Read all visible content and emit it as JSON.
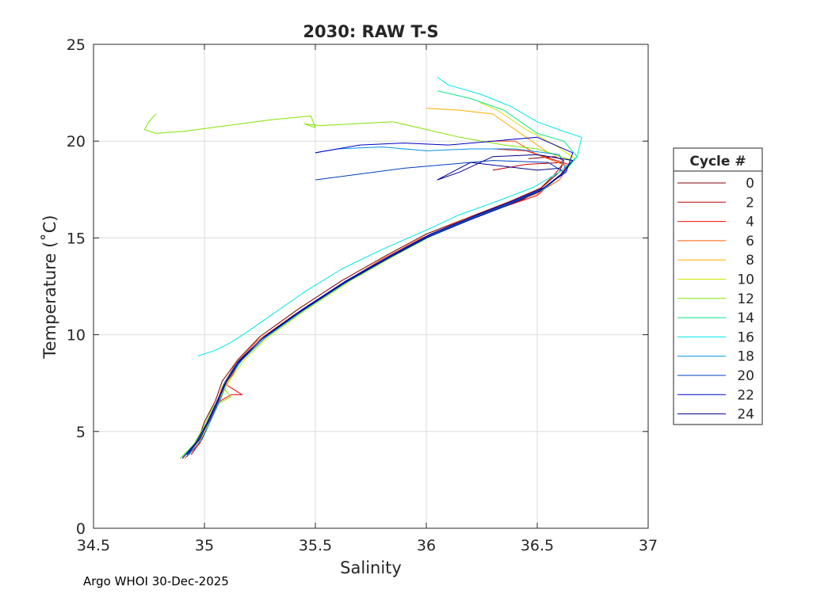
{
  "chart_data": {
    "type": "line",
    "title": "2030: RAW T-S",
    "xlabel": "Salinity",
    "ylabel": "Temperature (˚C)",
    "xlim": [
      34.5,
      37
    ],
    "ylim": [
      0,
      25
    ],
    "xticks": [
      "34.5",
      "35",
      "35.5",
      "36",
      "36.5",
      "37"
    ],
    "xtick_values": [
      34.5,
      35,
      35.5,
      36,
      36.5,
      37
    ],
    "yticks": [
      "0",
      "5",
      "10",
      "15",
      "20",
      "25"
    ],
    "ytick_values": [
      0,
      5,
      10,
      15,
      20,
      25
    ],
    "grid": true,
    "legend_title": "Cycle #",
    "legend_position": "right",
    "series": [
      {
        "name": "0",
        "color": "#7f0000",
        "points": [
          [
            34.93,
            3.9
          ],
          [
            34.97,
            4.5
          ],
          [
            35.0,
            5.5
          ],
          [
            35.05,
            6.6
          ],
          [
            35.08,
            7.6
          ],
          [
            35.15,
            8.7
          ],
          [
            35.25,
            9.9
          ],
          [
            35.42,
            11.3
          ],
          [
            35.62,
            12.8
          ],
          [
            35.82,
            14.1
          ],
          [
            36.0,
            15.2
          ],
          [
            36.2,
            16.1
          ],
          [
            36.38,
            16.9
          ],
          [
            36.52,
            17.6
          ],
          [
            36.6,
            18.4
          ],
          [
            36.62,
            19.0
          ],
          [
            36.58,
            19.2
          ],
          [
            36.46,
            19.1
          ]
        ]
      },
      {
        "name": "2",
        "color": "#c00000",
        "points": [
          [
            34.94,
            3.8
          ],
          [
            34.99,
            4.6
          ],
          [
            35.03,
            5.7
          ],
          [
            35.07,
            6.7
          ],
          [
            35.1,
            7.7
          ],
          [
            35.17,
            8.8
          ],
          [
            35.28,
            10.0
          ],
          [
            35.46,
            11.4
          ],
          [
            35.66,
            12.9
          ],
          [
            35.86,
            14.2
          ],
          [
            36.04,
            15.3
          ],
          [
            36.22,
            16.1
          ],
          [
            36.36,
            16.7
          ],
          [
            36.44,
            17.0
          ],
          [
            36.5,
            17.4
          ],
          [
            36.58,
            18.3
          ],
          [
            36.62,
            18.9
          ],
          [
            36.45,
            18.8
          ],
          [
            36.3,
            18.5
          ]
        ]
      },
      {
        "name": "4",
        "color": "#ff0000",
        "points": [
          [
            34.92,
            3.7
          ],
          [
            34.98,
            4.4
          ],
          [
            35.02,
            5.6
          ],
          [
            35.06,
            6.5
          ],
          [
            35.12,
            6.9
          ],
          [
            35.17,
            6.9
          ],
          [
            35.1,
            7.4
          ],
          [
            35.16,
            8.6
          ],
          [
            35.26,
            9.8
          ],
          [
            35.44,
            11.2
          ],
          [
            35.64,
            12.7
          ],
          [
            35.84,
            14.0
          ],
          [
            36.02,
            15.1
          ],
          [
            36.12,
            15.6
          ],
          [
            36.24,
            16.2
          ],
          [
            36.4,
            16.8
          ],
          [
            36.5,
            17.2
          ],
          [
            36.6,
            18.2
          ],
          [
            36.64,
            18.8
          ],
          [
            36.45,
            19.5
          ],
          [
            36.3,
            19.6
          ]
        ]
      },
      {
        "name": "6",
        "color": "#ff5a00",
        "points": [
          [
            34.91,
            3.6
          ],
          [
            34.97,
            4.3
          ],
          [
            35.01,
            5.4
          ],
          [
            35.05,
            6.3
          ],
          [
            35.08,
            7.3
          ],
          [
            35.14,
            8.5
          ],
          [
            35.24,
            9.7
          ],
          [
            35.4,
            11.0
          ],
          [
            35.6,
            12.5
          ],
          [
            35.8,
            13.9
          ],
          [
            35.98,
            15.0
          ],
          [
            36.18,
            16.0
          ],
          [
            36.36,
            16.7
          ],
          [
            36.5,
            17.3
          ],
          [
            36.6,
            18.0
          ],
          [
            36.64,
            18.7
          ],
          [
            36.5,
            19.3
          ],
          [
            36.4,
            20.0
          ],
          [
            36.28,
            20.0
          ]
        ]
      },
      {
        "name": "8",
        "color": "#ffaa00",
        "points": [
          [
            34.92,
            3.7
          ],
          [
            34.98,
            4.5
          ],
          [
            35.02,
            5.5
          ],
          [
            35.06,
            6.5
          ],
          [
            35.1,
            7.5
          ],
          [
            35.16,
            8.6
          ],
          [
            35.26,
            9.8
          ],
          [
            35.43,
            11.2
          ],
          [
            35.63,
            12.7
          ],
          [
            35.83,
            14.0
          ],
          [
            36.01,
            15.1
          ],
          [
            36.2,
            16.0
          ],
          [
            36.38,
            16.8
          ],
          [
            36.52,
            17.5
          ],
          [
            36.62,
            18.4
          ],
          [
            36.66,
            19.0
          ],
          [
            36.55,
            19.4
          ],
          [
            36.45,
            20.2
          ],
          [
            36.3,
            21.4
          ],
          [
            36.15,
            21.6
          ],
          [
            36.0,
            21.7
          ]
        ]
      },
      {
        "name": "10",
        "color": "#d4e600",
        "points": [
          [
            34.92,
            3.8
          ],
          [
            34.98,
            4.6
          ],
          [
            35.03,
            5.6
          ],
          [
            35.07,
            6.6
          ],
          [
            35.11,
            7.6
          ],
          [
            35.18,
            8.7
          ],
          [
            35.29,
            9.9
          ],
          [
            35.46,
            11.3
          ],
          [
            35.66,
            12.8
          ],
          [
            35.86,
            14.1
          ],
          [
            36.04,
            15.2
          ],
          [
            36.22,
            16.1
          ],
          [
            36.4,
            16.9
          ],
          [
            36.54,
            17.6
          ],
          [
            36.63,
            18.5
          ],
          [
            36.67,
            19.1
          ],
          [
            36.58,
            19.8
          ],
          [
            36.45,
            20.6
          ],
          [
            36.32,
            21.6
          ],
          [
            36.24,
            22.0
          ]
        ]
      },
      {
        "name": "12",
        "color": "#7fe600",
        "points": [
          [
            34.89,
            3.6
          ],
          [
            34.95,
            4.3
          ],
          [
            35.0,
            5.3
          ],
          [
            35.04,
            6.3
          ],
          [
            35.12,
            6.8
          ],
          [
            35.08,
            7.3
          ],
          [
            35.15,
            8.5
          ],
          [
            35.25,
            9.7
          ],
          [
            35.42,
            11.1
          ],
          [
            35.62,
            12.6
          ],
          [
            35.82,
            13.9
          ],
          [
            36.0,
            15.0
          ],
          [
            36.2,
            16.0
          ],
          [
            36.38,
            16.8
          ],
          [
            36.52,
            17.5
          ],
          [
            36.62,
            18.4
          ],
          [
            36.66,
            19.0
          ],
          [
            36.5,
            19.6
          ],
          [
            36.35,
            19.8
          ],
          [
            36.15,
            20.2
          ],
          [
            36.0,
            20.6
          ],
          [
            35.85,
            21.0
          ],
          [
            35.68,
            20.9
          ],
          [
            35.52,
            20.8
          ],
          [
            35.45,
            20.9
          ],
          [
            35.5,
            20.7
          ],
          [
            35.48,
            21.3
          ],
          [
            35.3,
            21.1
          ],
          [
            35.1,
            20.8
          ],
          [
            34.9,
            20.5
          ],
          [
            34.78,
            20.4
          ],
          [
            34.73,
            20.6
          ],
          [
            34.75,
            21.0
          ],
          [
            34.78,
            21.4
          ]
        ]
      },
      {
        "name": "14",
        "color": "#00e67f",
        "points": [
          [
            34.9,
            3.7
          ],
          [
            34.96,
            4.4
          ],
          [
            35.01,
            5.4
          ],
          [
            35.05,
            6.4
          ],
          [
            35.09,
            7.4
          ],
          [
            35.16,
            8.6
          ],
          [
            35.27,
            9.8
          ],
          [
            35.44,
            11.2
          ],
          [
            35.64,
            12.7
          ],
          [
            35.84,
            14.0
          ],
          [
            36.02,
            15.1
          ],
          [
            36.21,
            16.0
          ],
          [
            36.39,
            16.8
          ],
          [
            36.53,
            17.5
          ],
          [
            36.62,
            18.4
          ],
          [
            36.68,
            19.2
          ],
          [
            36.62,
            20.0
          ],
          [
            36.5,
            20.4
          ],
          [
            36.35,
            21.6
          ],
          [
            36.2,
            22.2
          ],
          [
            36.05,
            22.6
          ]
        ]
      },
      {
        "name": "16",
        "color": "#00e6e6",
        "points": [
          [
            34.97,
            8.9
          ],
          [
            35.05,
            9.2
          ],
          [
            35.12,
            9.6
          ],
          [
            35.2,
            10.2
          ],
          [
            35.3,
            11.0
          ],
          [
            35.45,
            12.2
          ],
          [
            35.62,
            13.4
          ],
          [
            35.8,
            14.4
          ],
          [
            36.0,
            15.4
          ],
          [
            36.15,
            16.2
          ],
          [
            36.32,
            16.9
          ],
          [
            36.48,
            17.6
          ],
          [
            36.6,
            18.4
          ],
          [
            36.68,
            19.2
          ],
          [
            36.7,
            20.2
          ],
          [
            36.62,
            20.5
          ],
          [
            36.5,
            21.0
          ],
          [
            36.38,
            21.8
          ],
          [
            36.25,
            22.4
          ],
          [
            36.1,
            22.9
          ],
          [
            36.05,
            23.3
          ]
        ]
      },
      {
        "name": "18",
        "color": "#0090e6",
        "points": [
          [
            34.93,
            3.8
          ],
          [
            34.99,
            4.6
          ],
          [
            35.03,
            5.6
          ],
          [
            35.07,
            6.6
          ],
          [
            35.1,
            7.6
          ],
          [
            35.17,
            8.7
          ],
          [
            35.28,
            9.9
          ],
          [
            35.45,
            11.3
          ],
          [
            35.65,
            12.8
          ],
          [
            35.85,
            14.1
          ],
          [
            36.03,
            15.2
          ],
          [
            36.22,
            16.1
          ],
          [
            36.4,
            16.9
          ],
          [
            36.54,
            17.6
          ],
          [
            36.63,
            18.5
          ],
          [
            36.6,
            19.3
          ],
          [
            36.4,
            19.6
          ],
          [
            36.2,
            19.6
          ],
          [
            36.0,
            19.5
          ],
          [
            35.8,
            19.7
          ],
          [
            35.6,
            19.6
          ],
          [
            35.5,
            19.4
          ]
        ]
      },
      {
        "name": "20",
        "color": "#0040c0",
        "points": [
          [
            34.92,
            3.7
          ],
          [
            34.97,
            4.5
          ],
          [
            35.02,
            5.5
          ],
          [
            35.06,
            6.5
          ],
          [
            35.09,
            7.5
          ],
          [
            35.15,
            8.6
          ],
          [
            35.26,
            9.8
          ],
          [
            35.43,
            11.2
          ],
          [
            35.63,
            12.7
          ],
          [
            35.83,
            14.0
          ],
          [
            36.01,
            15.1
          ],
          [
            36.2,
            16.0
          ],
          [
            36.38,
            16.8
          ],
          [
            36.52,
            17.5
          ],
          [
            36.62,
            18.4
          ],
          [
            36.55,
            18.9
          ],
          [
            36.3,
            19.0
          ],
          [
            36.1,
            18.8
          ],
          [
            35.9,
            18.6
          ],
          [
            35.7,
            18.3
          ],
          [
            35.5,
            18.0
          ]
        ]
      },
      {
        "name": "22",
        "color": "#0000c8",
        "points": [
          [
            34.92,
            3.8
          ],
          [
            34.98,
            4.6
          ],
          [
            35.02,
            5.6
          ],
          [
            35.06,
            6.6
          ],
          [
            35.1,
            7.6
          ],
          [
            35.16,
            8.7
          ],
          [
            35.27,
            9.9
          ],
          [
            35.44,
            11.3
          ],
          [
            35.64,
            12.8
          ],
          [
            35.84,
            14.1
          ],
          [
            36.02,
            15.2
          ],
          [
            36.21,
            16.1
          ],
          [
            36.39,
            16.9
          ],
          [
            36.53,
            17.6
          ],
          [
            36.63,
            18.4
          ],
          [
            36.66,
            19.4
          ],
          [
            36.5,
            20.2
          ],
          [
            36.3,
            20.0
          ],
          [
            36.1,
            19.8
          ],
          [
            35.9,
            19.9
          ],
          [
            35.7,
            19.8
          ],
          [
            35.5,
            19.4
          ]
        ]
      },
      {
        "name": "24",
        "color": "#00008f",
        "points": [
          [
            34.9,
            3.6
          ],
          [
            34.96,
            4.4
          ],
          [
            35.01,
            5.4
          ],
          [
            35.05,
            6.4
          ],
          [
            35.09,
            7.4
          ],
          [
            35.15,
            8.5
          ],
          [
            35.25,
            9.7
          ],
          [
            35.42,
            11.1
          ],
          [
            35.62,
            12.6
          ],
          [
            35.82,
            13.9
          ],
          [
            36.0,
            15.0
          ],
          [
            36.19,
            15.9
          ],
          [
            36.37,
            16.7
          ],
          [
            36.51,
            17.4
          ],
          [
            36.61,
            18.3
          ],
          [
            36.66,
            19.0
          ],
          [
            36.5,
            19.3
          ],
          [
            36.3,
            19.2
          ],
          [
            36.15,
            18.4
          ],
          [
            36.05,
            18.0
          ],
          [
            36.2,
            18.9
          ],
          [
            36.5,
            18.5
          ],
          [
            36.6,
            18.6
          ]
        ]
      }
    ]
  },
  "footer": "Argo WHOI 30-Dec-2025"
}
